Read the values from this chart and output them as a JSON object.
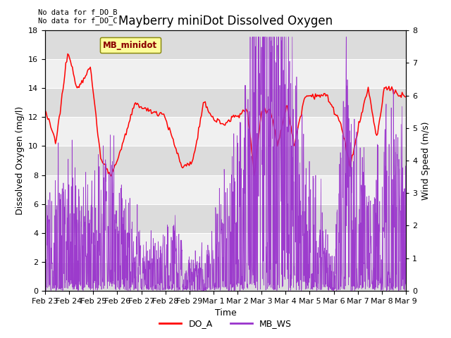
{
  "title": "Mayberry miniDot Dissolved Oxygen",
  "xlabel": "Time",
  "ylabel_left": "Dissolved Oxygen (mg/l)",
  "ylabel_right": "Wind Speed (m/s)",
  "ylim_left": [
    0,
    18
  ],
  "ylim_right": [
    0.0,
    8.0
  ],
  "yticks_left": [
    0,
    2,
    4,
    6,
    8,
    10,
    12,
    14,
    16,
    18
  ],
  "yticks_right": [
    0.0,
    1.0,
    2.0,
    3.0,
    4.0,
    5.0,
    6.0,
    7.0,
    8.0
  ],
  "legend_label_minidot": "MB_minidot",
  "legend_label_doa": "DO_A",
  "legend_label_ws": "MB_WS",
  "no_data_text1": "No data for f_DO_B",
  "no_data_text2": "No data for f_DO_C",
  "color_doa": "#FF0000",
  "color_ws": "#9932CC",
  "color_band_dark": "#DCDCDC",
  "color_band_light": "#F0F0F0",
  "background_color": "#FFFFFF",
  "title_fontsize": 12,
  "axis_fontsize": 9,
  "tick_fontsize": 8,
  "figwidth": 6.4,
  "figheight": 4.8,
  "dpi": 100
}
